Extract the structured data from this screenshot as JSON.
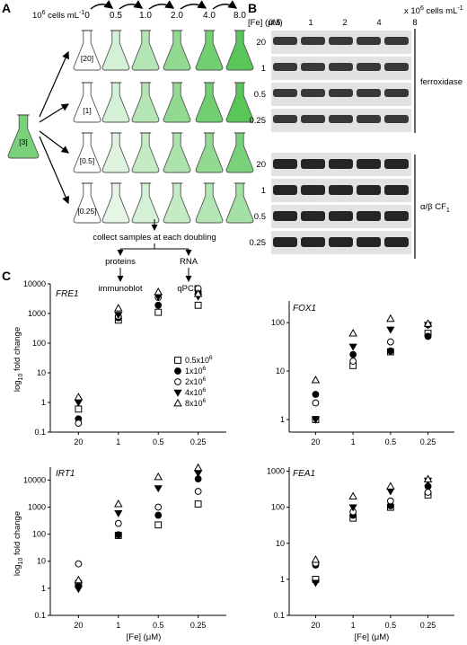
{
  "panel_a": {
    "label": "A",
    "cells_unit_prefix": "10",
    "cells_unit_exp": "6",
    "cells_unit_suffix": " cells mL",
    "cells_unit_exp2": "-1",
    "densities": [
      "0",
      "0.5",
      "1.0",
      "2.0",
      "4.0",
      "8.0"
    ],
    "source_flask": "[3]",
    "row_flasks": [
      "[20]",
      "[1]",
      "[0.5]",
      "[0.25]"
    ],
    "fill_levels": [
      [
        0,
        0.25,
        0.45,
        0.65,
        0.85,
        1.0
      ],
      [
        0,
        0.25,
        0.45,
        0.65,
        0.85,
        1.0
      ],
      [
        0,
        0.2,
        0.35,
        0.5,
        0.65,
        0.8
      ],
      [
        0,
        0.15,
        0.25,
        0.35,
        0.45,
        0.55
      ]
    ],
    "collect": "collect samples at each doubling",
    "proteins": "proteins",
    "rna": "RNA",
    "immunoblot": "immunoblot",
    "qpcr": "qPCR",
    "flask_color": "#58c658"
  },
  "panel_b": {
    "label": "B",
    "fe_label": "[Fe] (μM)",
    "columns": [
      "0.5",
      "1",
      "2",
      "4",
      "8"
    ],
    "cells_label_prefix": "x 10",
    "cells_label_exp": "6",
    "cells_label_suffix": " cells mL",
    "cells_label_exp2": "-1",
    "ferroxidase_label": "ferroxidase",
    "ferroxidase_rows": [
      "20",
      "1",
      "0.5",
      "0.25"
    ],
    "cf1_label_prefix": "α/β CF",
    "cf1_label_sub": "1",
    "cf1_rows": [
      "20",
      "1",
      "0.5",
      "0.25"
    ]
  },
  "panel_c": {
    "label": "C",
    "ylabel": "log",
    "ylabel_sub": "10",
    "ylabel_suffix": " fold change",
    "xlabel": "[Fe] (μM)",
    "legend": [
      {
        "symbol": "open-square",
        "label_prefix": "0.5x10",
        "label_exp": "6"
      },
      {
        "symbol": "filled-circle",
        "label_prefix": "1x10",
        "label_exp": "6"
      },
      {
        "symbol": "open-circle",
        "label_prefix": "2x10",
        "label_exp": "6"
      },
      {
        "symbol": "filled-triangle-down",
        "label_prefix": "4x10",
        "label_exp": "6"
      },
      {
        "symbol": "open-triangle",
        "label_prefix": "8x10",
        "label_exp": "6"
      }
    ]
  },
  "chart_data": [
    {
      "type": "scatter",
      "title": "FRE1",
      "xlabel": "",
      "ylabel": "log10 fold change",
      "categories": [
        "20",
        "1",
        "0.5",
        "0.25"
      ],
      "y_ticks": [
        "0.1",
        "1",
        "10",
        "100",
        "1000",
        "10000"
      ],
      "ylim": [
        0.1,
        10000
      ],
      "log_scale": true,
      "series": [
        {
          "name": "0.5x10^6",
          "values": [
            0.6,
            600,
            1100,
            1900
          ]
        },
        {
          "name": "1x10^6",
          "values": [
            0.28,
            720,
            1900,
            5500
          ]
        },
        {
          "name": "2x10^6",
          "values": [
            0.2,
            800,
            3500,
            7000
          ]
        },
        {
          "name": "4x10^6",
          "values": [
            1.0,
            900,
            3700,
            3800
          ]
        },
        {
          "name": "8x10^6",
          "values": [
            1.5,
            1500,
            5300,
            4600
          ]
        }
      ]
    },
    {
      "type": "scatter",
      "title": "FOX1",
      "xlabel": "",
      "ylabel": "",
      "categories": [
        "20",
        "1",
        "0.5",
        "0.25"
      ],
      "y_ticks": [
        "1",
        "10",
        "100"
      ],
      "ylim": [
        0.55,
        280
      ],
      "log_scale": true,
      "series": [
        {
          "name": "0.5x10^6",
          "values": [
            1.0,
            13,
            25,
            60
          ]
        },
        {
          "name": "1x10^6",
          "values": [
            3.3,
            22,
            26,
            52
          ]
        },
        {
          "name": "2x10^6",
          "values": [
            2.2,
            16,
            40,
            90
          ]
        },
        {
          "name": "4x10^6",
          "values": [
            1.0,
            32,
            72,
            90
          ]
        },
        {
          "name": "8x10^6",
          "values": [
            6.5,
            60,
            120,
            95
          ]
        }
      ]
    },
    {
      "type": "scatter",
      "title": "IRT1",
      "xlabel": "[Fe] (μM)",
      "ylabel": "log10 fold change",
      "categories": [
        "20",
        "1",
        "0.5",
        "0.25"
      ],
      "y_ticks": [
        "0.1",
        "1",
        "10",
        "100",
        "1000",
        "10000"
      ],
      "ylim": [
        0.1,
        30000
      ],
      "log_scale": true,
      "series": [
        {
          "name": "0.5x10^6",
          "values": [
            1.5,
            90,
            220,
            1300
          ]
        },
        {
          "name": "1x10^6",
          "values": [
            1.2,
            95,
            500,
            11000
          ]
        },
        {
          "name": "2x10^6",
          "values": [
            8.0,
            250,
            1000,
            3800
          ]
        },
        {
          "name": "4x10^6",
          "values": [
            0.95,
            600,
            5000,
            18000
          ]
        },
        {
          "name": "8x10^6",
          "values": [
            2.0,
            1300,
            13000,
            28000
          ]
        }
      ]
    },
    {
      "type": "scatter",
      "title": "FEA1",
      "xlabel": "[Fe] (μM)",
      "ylabel": "",
      "categories": [
        "20",
        "1",
        "0.5",
        "0.25"
      ],
      "y_ticks": [
        "0.1",
        "1",
        "10",
        "100",
        "1000"
      ],
      "ylim": [
        0.1,
        1300
      ],
      "log_scale": true,
      "series": [
        {
          "name": "0.5x10^6",
          "values": [
            1.0,
            50,
            100,
            220
          ]
        },
        {
          "name": "1x10^6",
          "values": [
            2.5,
            60,
            110,
            380
          ]
        },
        {
          "name": "2x10^6",
          "values": [
            2.8,
            75,
            150,
            260
          ]
        },
        {
          "name": "4x10^6",
          "values": [
            0.8,
            100,
            280,
            550
          ]
        },
        {
          "name": "8x10^6",
          "values": [
            3.5,
            200,
            380,
            600
          ]
        }
      ]
    }
  ]
}
